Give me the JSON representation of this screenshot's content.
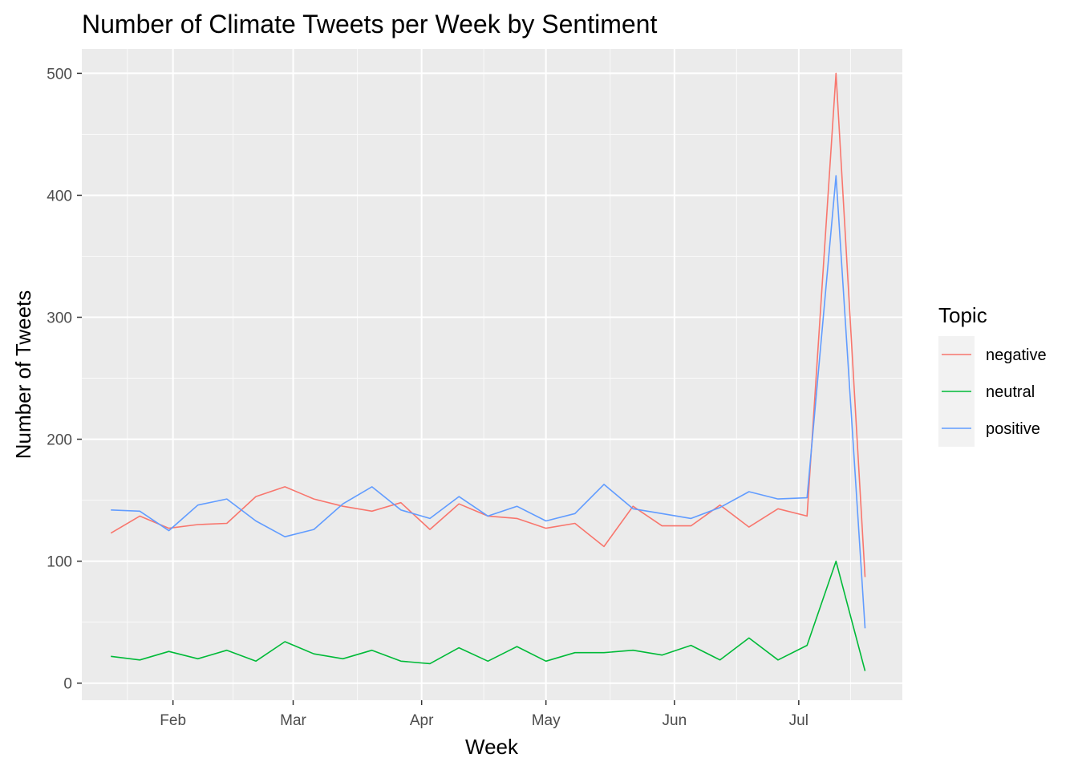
{
  "chart_data": {
    "type": "line",
    "title": "Number of Climate Tweets per Week by Sentiment",
    "xlabel": "Week",
    "ylabel": "Number of Tweets",
    "x_ticks": [
      "Feb",
      "Mar",
      "Apr",
      "May",
      "Jun",
      "Jul"
    ],
    "x_tick_dates": [
      "2020-02-01",
      "2020-03-01",
      "2020-04-01",
      "2020-05-01",
      "2020-06-01",
      "2020-07-01"
    ],
    "x_range": [
      "2020-01-10",
      "2020-07-26"
    ],
    "y_ticks": [
      0,
      100,
      200,
      300,
      400,
      500
    ],
    "ylim": [
      -14,
      520
    ],
    "grid": true,
    "legend_position": "right",
    "legend_title": "Topic",
    "x": [
      "2020-01-17",
      "2020-01-24",
      "2020-01-31",
      "2020-02-07",
      "2020-02-14",
      "2020-02-21",
      "2020-02-28",
      "2020-03-06",
      "2020-03-13",
      "2020-03-20",
      "2020-03-27",
      "2020-04-03",
      "2020-04-10",
      "2020-04-17",
      "2020-04-24",
      "2020-05-01",
      "2020-05-08",
      "2020-05-15",
      "2020-05-22",
      "2020-05-29",
      "2020-06-05",
      "2020-06-12",
      "2020-06-19",
      "2020-06-26",
      "2020-07-03",
      "2020-07-10",
      "2020-07-17"
    ],
    "series": [
      {
        "name": "negative",
        "color": "#F8766D",
        "values": [
          123,
          137,
          127,
          130,
          131,
          153,
          161,
          151,
          145,
          141,
          148,
          126,
          147,
          137,
          135,
          127,
          131,
          112,
          145,
          129,
          129,
          146,
          128,
          143,
          137,
          500,
          87
        ]
      },
      {
        "name": "neutral",
        "color": "#00BA38",
        "values": [
          22,
          19,
          26,
          20,
          27,
          18,
          34,
          24,
          20,
          27,
          18,
          16,
          29,
          18,
          30,
          18,
          25,
          25,
          27,
          23,
          31,
          19,
          37,
          19,
          31,
          100,
          10
        ]
      },
      {
        "name": "positive",
        "color": "#619CFF",
        "values": [
          142,
          141,
          125,
          146,
          151,
          133,
          120,
          126,
          147,
          161,
          142,
          135,
          153,
          137,
          145,
          133,
          139,
          163,
          143,
          139,
          135,
          144,
          157,
          151,
          152,
          416,
          45
        ]
      }
    ]
  }
}
